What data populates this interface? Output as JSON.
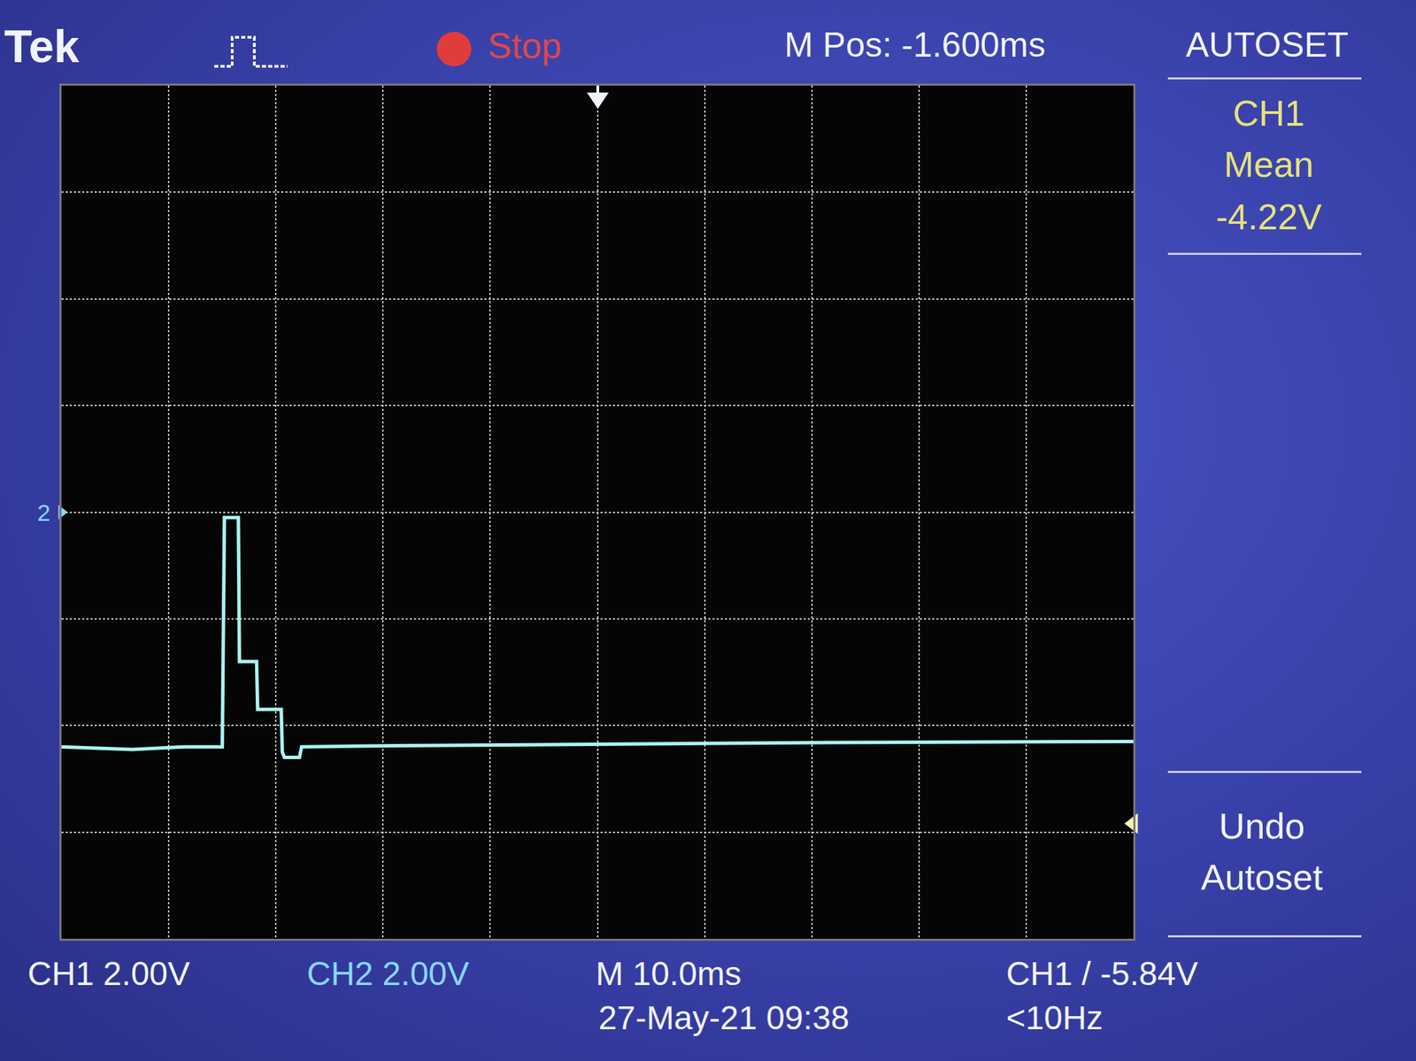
{
  "chart_data": {
    "type": "line",
    "x": [
      -51.6,
      -45,
      -40,
      -36.6,
      -36.4,
      -35.1,
      -35.0,
      -33.4,
      -33.3,
      -31.1,
      -31.0,
      -30.8,
      -29.4,
      -29.2,
      -20,
      0,
      20,
      48.4
    ],
    "values": [
      -4.4,
      -4.45,
      -4.4,
      -4.4,
      -0.1,
      -0.1,
      -2.8,
      -2.8,
      -3.7,
      -3.7,
      -4.5,
      -4.6,
      -4.6,
      -4.4,
      -4.38,
      -4.35,
      -4.32,
      -4.3
    ],
    "color": "#a8f4f0",
    "xlim": [
      -51.6,
      48.4
    ],
    "xticks": [
      -51.6,
      -41.6,
      -31.6,
      -21.6,
      -11.6,
      -1.6,
      8.4,
      18.4,
      28.4,
      38.4,
      48.4
    ],
    "ylim": [
      -8,
      8
    ],
    "yticks": [
      -8,
      -6,
      -4,
      -2,
      0,
      2,
      4,
      6,
      8
    ],
    "grid": true,
    "tick_labels": false,
    "trigger_level": -5.84,
    "ch2_marker": {
      "text": "2",
      "y": 0
    },
    "header_texts": [
      "Tek",
      "Stop",
      "M Pos: -1.600ms",
      "AUTOSET"
    ],
    "side_texts": [
      "CH1",
      "Mean",
      "-4.22V",
      "Undo",
      "Autoset"
    ],
    "footer_texts": [
      "CH1 2.00V",
      "CH2 2.00V",
      "M 10.0ms",
      "27-May-21 09:38",
      "CH1 / -5.84V",
      "<10Hz"
    ]
  }
}
